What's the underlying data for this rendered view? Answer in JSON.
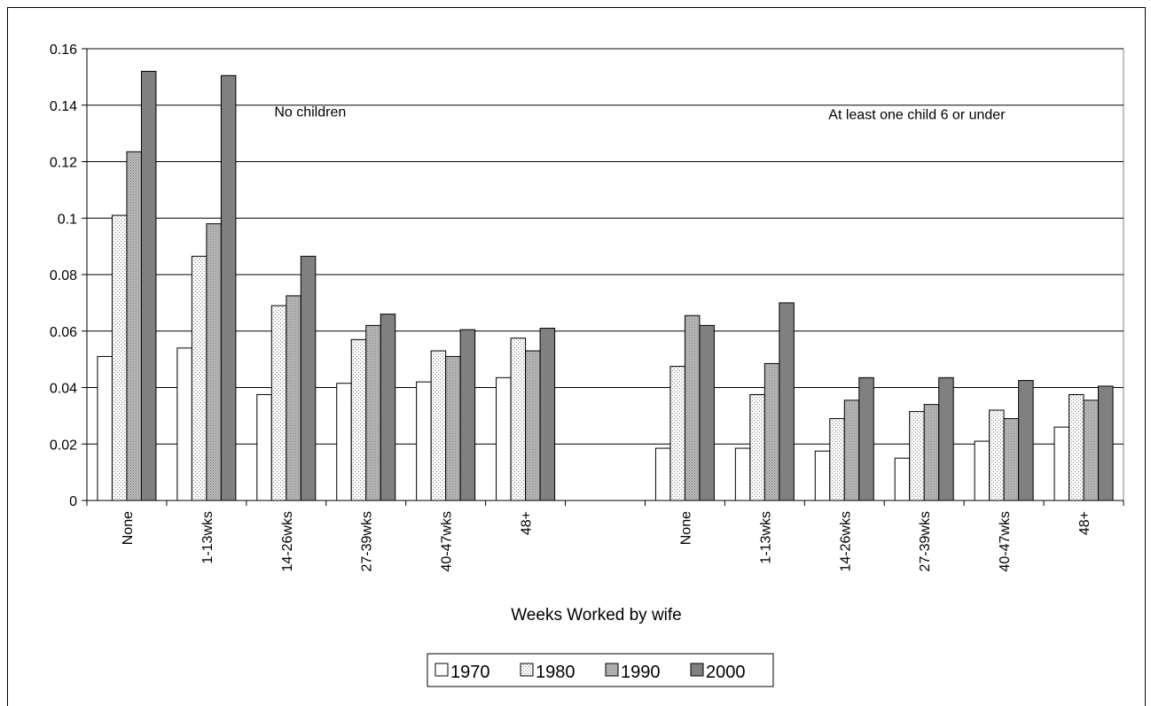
{
  "chart_data": {
    "type": "bar",
    "xlabel": "Weeks Worked by wife",
    "ylabel": "",
    "ylim": [
      0,
      0.16
    ],
    "yticks": [
      "0",
      "0.02",
      "0.04",
      "0.06",
      "0.08",
      "0.1",
      "0.12",
      "0.14",
      "0.16"
    ],
    "grid": true,
    "legend_position": "bottom",
    "groups": [
      {
        "label": "No children",
        "categories": [
          "None",
          "1-13wks",
          "14-26wks",
          "27-39wks",
          "40-47wks",
          "48+"
        ]
      },
      {
        "label": "At least one child 6 or under",
        "categories": [
          "None",
          "1-13wks",
          "14-26wks",
          "27-39wks",
          "40-47wks",
          "48+"
        ]
      }
    ],
    "series": [
      {
        "name": "1970",
        "color": "#ffffff",
        "pattern": "none",
        "values": [
          0.051,
          0.054,
          0.0375,
          0.0415,
          0.042,
          0.0435,
          0.0185,
          0.0185,
          0.0175,
          0.015,
          0.021,
          0.026
        ]
      },
      {
        "name": "1980",
        "color": "#e8e8e8",
        "pattern": "dots",
        "values": [
          0.101,
          0.0865,
          0.069,
          0.057,
          0.053,
          0.0575,
          0.0475,
          0.0375,
          0.029,
          0.0315,
          0.032,
          0.0375
        ]
      },
      {
        "name": "1990",
        "color": "#b2b2b2",
        "pattern": "dots",
        "values": [
          0.1235,
          0.098,
          0.0725,
          0.062,
          0.051,
          0.053,
          0.0655,
          0.0485,
          0.0355,
          0.034,
          0.029,
          0.0355
        ]
      },
      {
        "name": "2000",
        "color": "#808080",
        "pattern": "none",
        "values": [
          0.152,
          0.1505,
          0.0865,
          0.066,
          0.0605,
          0.061,
          0.062,
          0.07,
          0.0435,
          0.0435,
          0.0425,
          0.0405
        ]
      }
    ]
  }
}
